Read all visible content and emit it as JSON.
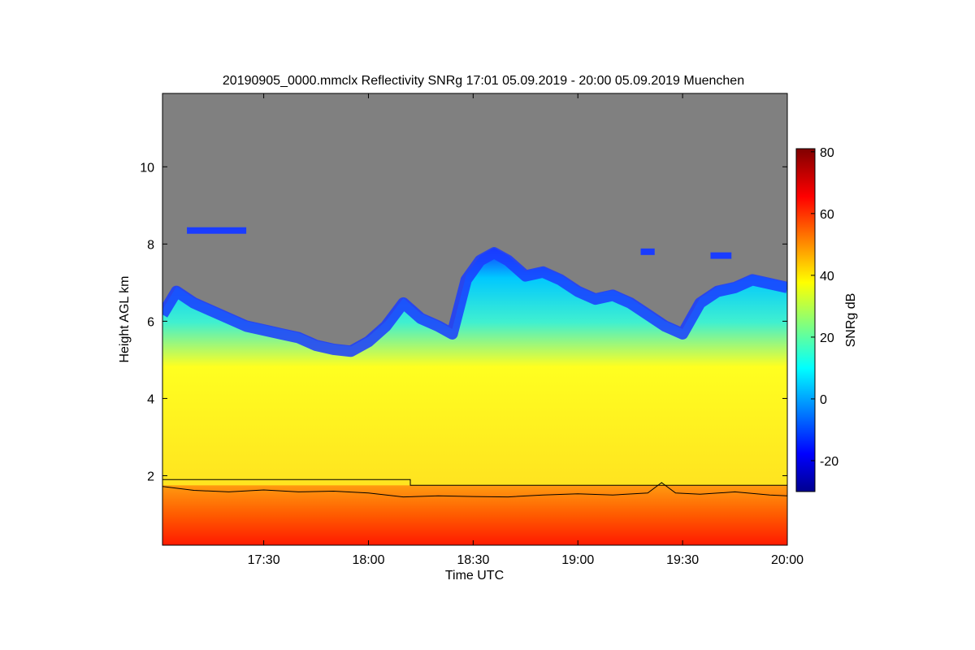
{
  "chart_data": {
    "type": "heatmap",
    "title": "20190905_0000.mmclx Reflectivity SNRg   17:01 05.09.2019 - 20:00 05.09.2019 Muenchen",
    "xlabel": "Time UTC",
    "ylabel": "Height AGL km",
    "colorbar_label": "SNRg dB",
    "x_range_minutes_of_day": [
      1021,
      1200
    ],
    "x_ticks": [
      {
        "minute": 1050,
        "label": "17:30"
      },
      {
        "minute": 1080,
        "label": "18:00"
      },
      {
        "minute": 1110,
        "label": "18:30"
      },
      {
        "minute": 1140,
        "label": "19:00"
      },
      {
        "minute": 1170,
        "label": "19:30"
      },
      {
        "minute": 1200,
        "label": "20:00"
      }
    ],
    "ylim": [
      0.2,
      11.9
    ],
    "y_ticks": [
      2,
      4,
      6,
      8,
      10
    ],
    "colorbar": {
      "range": [
        -30,
        81
      ],
      "ticks": [
        -20,
        0,
        20,
        40,
        60,
        80
      ],
      "colormap": "jet"
    },
    "no_signal_color": "#808080",
    "grid": false,
    "cloud_top_km": [
      {
        "minute": 1021,
        "value": 6.3
      },
      {
        "minute": 1025,
        "value": 6.9
      },
      {
        "minute": 1030,
        "value": 6.6
      },
      {
        "minute": 1035,
        "value": 6.4
      },
      {
        "minute": 1040,
        "value": 6.2
      },
      {
        "minute": 1045,
        "value": 6.0
      },
      {
        "minute": 1050,
        "value": 5.9
      },
      {
        "minute": 1055,
        "value": 5.8
      },
      {
        "minute": 1060,
        "value": 5.7
      },
      {
        "minute": 1065,
        "value": 5.5
      },
      {
        "minute": 1070,
        "value": 5.4
      },
      {
        "minute": 1075,
        "value": 5.35
      },
      {
        "minute": 1080,
        "value": 5.6
      },
      {
        "minute": 1085,
        "value": 6.0
      },
      {
        "minute": 1090,
        "value": 6.6
      },
      {
        "minute": 1095,
        "value": 6.2
      },
      {
        "minute": 1100,
        "value": 6.0
      },
      {
        "minute": 1104,
        "value": 5.8
      },
      {
        "minute": 1108,
        "value": 7.2
      },
      {
        "minute": 1112,
        "value": 7.7
      },
      {
        "minute": 1116,
        "value": 7.9
      },
      {
        "minute": 1120,
        "value": 7.7
      },
      {
        "minute": 1125,
        "value": 7.3
      },
      {
        "minute": 1130,
        "value": 7.4
      },
      {
        "minute": 1135,
        "value": 7.2
      },
      {
        "minute": 1140,
        "value": 6.9
      },
      {
        "minute": 1145,
        "value": 6.7
      },
      {
        "minute": 1150,
        "value": 6.8
      },
      {
        "minute": 1155,
        "value": 6.6
      },
      {
        "minute": 1160,
        "value": 6.3
      },
      {
        "minute": 1165,
        "value": 6.0
      },
      {
        "minute": 1170,
        "value": 5.8
      },
      {
        "minute": 1175,
        "value": 6.6
      },
      {
        "minute": 1180,
        "value": 6.9
      },
      {
        "minute": 1185,
        "value": 7.0
      },
      {
        "minute": 1190,
        "value": 7.2
      },
      {
        "minute": 1195,
        "value": 7.1
      },
      {
        "minute": 1200,
        "value": 7.0
      }
    ],
    "stepped_line_km": [
      {
        "minute": 1021,
        "value": 1.9
      },
      {
        "minute": 1092,
        "value": 1.9
      },
      {
        "minute": 1092,
        "value": 1.75
      },
      {
        "minute": 1200,
        "value": 1.75
      }
    ],
    "boundary_line_km": [
      {
        "minute": 1021,
        "value": 1.72
      },
      {
        "minute": 1030,
        "value": 1.62
      },
      {
        "minute": 1040,
        "value": 1.58
      },
      {
        "minute": 1050,
        "value": 1.63
      },
      {
        "minute": 1060,
        "value": 1.58
      },
      {
        "minute": 1070,
        "value": 1.6
      },
      {
        "minute": 1080,
        "value": 1.55
      },
      {
        "minute": 1090,
        "value": 1.45
      },
      {
        "minute": 1100,
        "value": 1.48
      },
      {
        "minute": 1110,
        "value": 1.46
      },
      {
        "minute": 1120,
        "value": 1.45
      },
      {
        "minute": 1130,
        "value": 1.5
      },
      {
        "minute": 1140,
        "value": 1.53
      },
      {
        "minute": 1150,
        "value": 1.5
      },
      {
        "minute": 1160,
        "value": 1.55
      },
      {
        "minute": 1164,
        "value": 1.82
      },
      {
        "minute": 1168,
        "value": 1.55
      },
      {
        "minute": 1175,
        "value": 1.52
      },
      {
        "minute": 1185,
        "value": 1.58
      },
      {
        "minute": 1195,
        "value": 1.5
      },
      {
        "minute": 1200,
        "value": 1.48
      }
    ],
    "upper_patches": [
      {
        "minute_start": 1028,
        "minute_end": 1045,
        "height_km": 8.35
      },
      {
        "minute_start": 1158,
        "minute_end": 1162,
        "height_km": 7.8
      },
      {
        "minute_start": 1178,
        "minute_end": 1184,
        "height_km": 7.7
      }
    ]
  }
}
